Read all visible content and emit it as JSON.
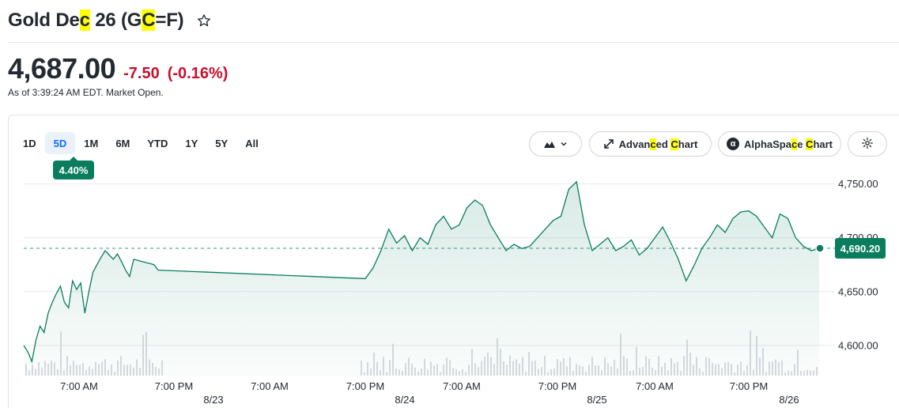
{
  "header": {
    "title_parts": [
      "Gold De",
      "c",
      " 26 (G",
      "C",
      "=F)"
    ],
    "star_icon": "star-outline-icon"
  },
  "quote": {
    "price": "4,687.00",
    "change": "-7.50",
    "change_pct": "(-0.16%)",
    "as_of": "As of 3:39:24 AM EDT. Market Open.",
    "down_color": "#c8102e"
  },
  "range_tabs": [
    {
      "label": "1D",
      "active": false
    },
    {
      "label": "5D",
      "active": true
    },
    {
      "label": "1M",
      "active": false
    },
    {
      "label": "6M",
      "active": false
    },
    {
      "label": "YTD",
      "active": false
    },
    {
      "label": "1Y",
      "active": false
    },
    {
      "label": "5Y",
      "active": false
    },
    {
      "label": "All",
      "active": false
    }
  ],
  "range_change_badge": "4.40%",
  "toolbar": {
    "chart_type_icon": "mountain-chart-icon",
    "advanced_parts": [
      "Advan",
      "c",
      "ed ",
      "C",
      "hart"
    ],
    "alpha_logo": "α",
    "alpha_parts": [
      "AlphaSpa",
      "c",
      "e ",
      "C",
      "hart"
    ],
    "settings_icon": "gear-icon"
  },
  "accent_color": "#0a7d5e",
  "chart_data": {
    "type": "area",
    "y_ticks": [
      "4,750.00",
      "4,700.00",
      "4,650.00",
      "4,600.00"
    ],
    "y_tick_values": [
      4750,
      4700,
      4650,
      4600
    ],
    "ylim": [
      4572,
      4760
    ],
    "x_ticks": [
      "7:00 AM",
      "7:00 PM",
      "7:00 AM",
      "7:00 PM",
      "7:00 AM",
      "7:00 PM",
      "7:00 AM",
      "7:00 PM"
    ],
    "date_ticks": [
      "8/23",
      "8/24",
      "8/25",
      "8/26"
    ],
    "last_price_label": "4,690.20",
    "last_price": 4690.2,
    "reference_price": 4690.2,
    "series": [
      {
        "values": [
          4600,
          4594,
          4585,
          4605,
          4618,
          4612,
          4630,
          4640,
          4648,
          4655,
          4640,
          4635,
          4660,
          4652,
          4658,
          4630,
          4650,
          4668,
          4675,
          4682,
          4688,
          4684,
          4680,
          4685,
          4678,
          4670,
          4664,
          4680,
          4679,
          4678,
          4677,
          4676,
          4675,
          4670,
          4662,
          4672,
          4688,
          4708,
          4695,
          4702,
          4688,
          4700,
          4694,
          4712,
          4720,
          4708,
          4712,
          4728,
          4735,
          4730,
          4712,
          4700,
          4688,
          4694,
          4690,
          4692,
          4700,
          4708,
          4716,
          4720,
          4745,
          4752,
          4712,
          4688,
          4694,
          4700,
          4688,
          4692,
          4698,
          4684,
          4690,
          4700,
          4710,
          4696,
          4680,
          4660,
          4674,
          4690,
          4700,
          4712,
          4705,
          4718,
          4724,
          4725,
          4720,
          4710,
          4700,
          4722,
          4718,
          4700,
          4692,
          4688,
          4690
        ]
      }
    ]
  }
}
